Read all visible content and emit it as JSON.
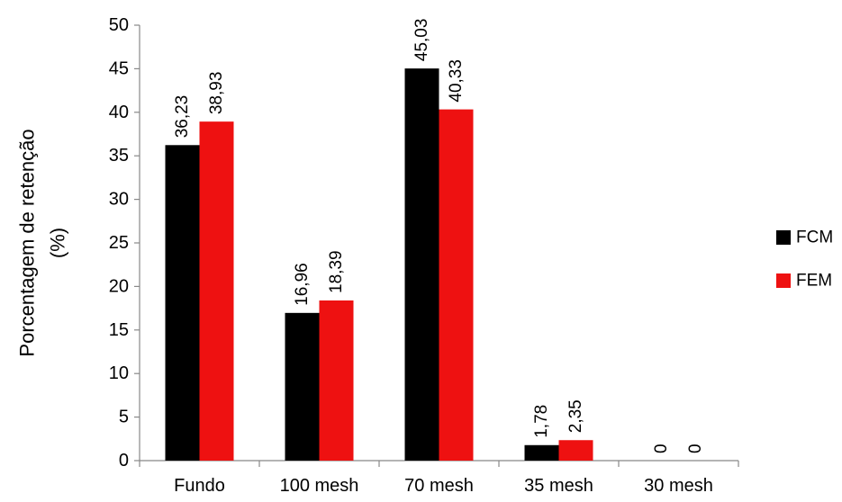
{
  "chart_data": {
    "type": "bar",
    "categories": [
      "Fundo",
      "100 mesh",
      "70 mesh",
      "35 mesh",
      "30 mesh"
    ],
    "series": [
      {
        "name": "FCM",
        "color": "#000000",
        "values": [
          36.23,
          16.96,
          45.03,
          1.78,
          0
        ],
        "labels": [
          "36,23",
          "16,96",
          "45,03",
          "1,78",
          "0"
        ]
      },
      {
        "name": "FEM",
        "color": "#ee1111",
        "values": [
          38.93,
          18.39,
          40.33,
          2.35,
          0
        ],
        "labels": [
          "38,93",
          "18,39",
          "40,33",
          "2,35",
          "0"
        ]
      }
    ],
    "ylabel_lines": [
      "Porcentagem de retenção",
      "(%)"
    ],
    "ylim": [
      0,
      50
    ],
    "yticks": [
      0,
      5,
      10,
      15,
      20,
      25,
      30,
      35,
      40,
      45,
      50
    ],
    "grid": false,
    "legend": "right"
  }
}
